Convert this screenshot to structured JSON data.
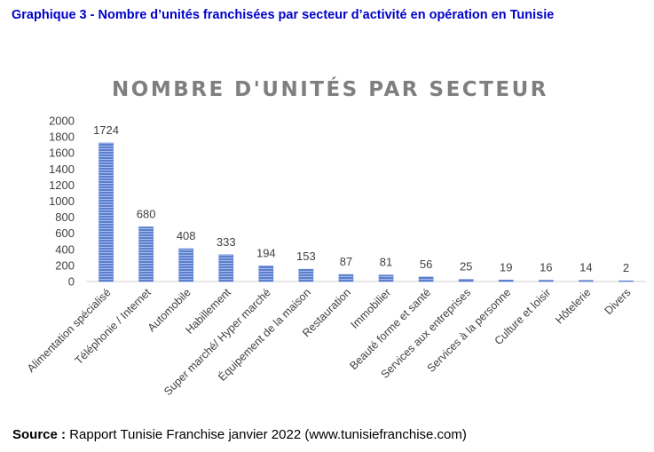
{
  "caption": "Graphique 3 - Nombre d’unités franchisées par secteur d’activité en opération en Tunisie",
  "source": {
    "label": "Source :",
    "text": "Rapport Tunisie Franchise janvier 2022 (www.tunisiefranchise.com)"
  },
  "chart_data": {
    "type": "bar",
    "title": "NOMBRE D'UNITÉS PAR SECTEUR",
    "categories": [
      "Alimentation spécialisé",
      "Téléphonie / Internet",
      "Automobile",
      "Habillement",
      "Super marché/ Hyper marché",
      "Équipement de la maison",
      "Restauration",
      "Immobilier",
      "Beauté forme et santé",
      "Services aux entreprises",
      "Services à la personne",
      "Culture et loisir",
      "Hôtelerie",
      "Divers"
    ],
    "values": [
      1724,
      680,
      408,
      333,
      194,
      153,
      87,
      81,
      56,
      25,
      19,
      16,
      14,
      2
    ],
    "ylim": [
      0,
      2000
    ],
    "yticks": [
      0,
      200,
      400,
      600,
      800,
      1000,
      1200,
      1400,
      1600,
      1800,
      2000
    ],
    "grid": false,
    "legend": "none",
    "bar_color": "#5b7fd0",
    "bar_stripe_color": "#a9bde8",
    "title_color": "#7f7f7f"
  }
}
